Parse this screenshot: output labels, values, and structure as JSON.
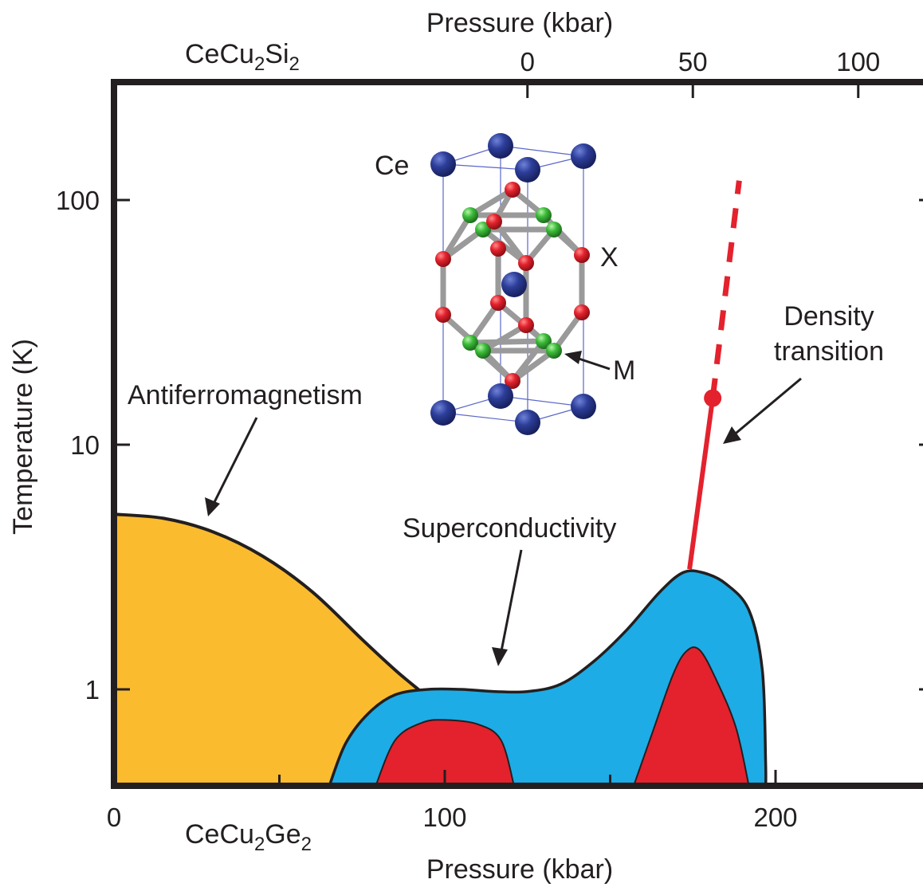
{
  "chart_data": {
    "type": "area",
    "title": "",
    "xlabel": "Pressure (kbar)",
    "x2label": "Pressure (kbar)",
    "ylabel": "Temperature (K)",
    "yscale": "log",
    "xlim": [
      0,
      245
    ],
    "ylim": [
      0.4,
      270
    ],
    "xticks": [
      0,
      100,
      200
    ],
    "xtick_labels": [
      "0",
      "100",
      "200"
    ],
    "yticks": [
      1,
      10,
      100
    ],
    "ytick_labels": [
      "1",
      "10",
      "100"
    ],
    "x2ticks": [
      {
        "bottom_x": 125,
        "label": "0"
      },
      {
        "bottom_x": 175,
        "label": "50"
      },
      {
        "bottom_x": 225,
        "label": "100"
      }
    ],
    "compound_labels": {
      "top": {
        "base": "CeCu",
        "sub1": "2",
        "mid": "Si",
        "sub2": "2"
      },
      "bottom": {
        "base": "CeCu",
        "sub1": "2",
        "mid": "Ge",
        "sub2": "2"
      }
    },
    "colors": {
      "antiferromagnetism": "#fbbb2e",
      "superconductivity": "#1dace5",
      "superconductivity_core": "#e3222d",
      "density_transition": "#e3222d",
      "frame": "#231f20",
      "crystal_Ce": "#2d3e99",
      "crystal_X": "#e3222d",
      "crystal_M": "#3dbb3a"
    },
    "regions": [
      {
        "name": "Antiferromagnetism",
        "points": [
          [
            0,
            5.2
          ],
          [
            15,
            5.0
          ],
          [
            30,
            4.4
          ],
          [
            45,
            3.5
          ],
          [
            60,
            2.5
          ],
          [
            75,
            1.6
          ],
          [
            85,
            1.2
          ],
          [
            92,
            1.0
          ],
          [
            95,
            0.93
          ],
          [
            85,
            0.65
          ],
          [
            75,
            0.48
          ],
          [
            65,
            0.4
          ],
          [
            0,
            0.4
          ]
        ]
      },
      {
        "name": "Superconductivity",
        "points": [
          [
            65,
            0.4
          ],
          [
            70,
            0.6
          ],
          [
            77,
            0.8
          ],
          [
            85,
            0.95
          ],
          [
            95,
            1.0
          ],
          [
            105,
            1.0
          ],
          [
            115,
            0.98
          ],
          [
            125,
            0.98
          ],
          [
            135,
            1.05
          ],
          [
            145,
            1.3
          ],
          [
            155,
            1.75
          ],
          [
            165,
            2.5
          ],
          [
            172,
            3.0
          ],
          [
            178,
            3.0
          ],
          [
            185,
            2.7
          ],
          [
            192,
            2.1
          ],
          [
            196,
            1.2
          ],
          [
            197,
            0.5
          ],
          [
            197,
            0.4
          ]
        ]
      },
      {
        "name": "superconductivity-core-1",
        "points": [
          [
            79,
            0.4
          ],
          [
            85,
            0.62
          ],
          [
            93,
            0.73
          ],
          [
            100,
            0.75
          ],
          [
            110,
            0.72
          ],
          [
            117,
            0.62
          ],
          [
            121,
            0.4
          ]
        ]
      },
      {
        "name": "superconductivity-core-2",
        "points": [
          [
            157,
            0.4
          ],
          [
            163,
            0.68
          ],
          [
            169,
            1.15
          ],
          [
            173,
            1.43
          ],
          [
            177,
            1.45
          ],
          [
            182,
            1.1
          ],
          [
            188,
            0.7
          ],
          [
            192,
            0.4
          ]
        ]
      }
    ],
    "density_transition": {
      "name": "Density transition",
      "solid": [
        [
          174,
          3.1
        ],
        [
          181,
          15.5
        ]
      ],
      "dashed": [
        [
          181,
          15.5
        ],
        [
          189,
          120
        ]
      ],
      "critical_point": [
        181,
        15.5
      ]
    },
    "annotations": [
      {
        "text": "Antiferromagnetism",
        "target": [
          28,
          5.2
        ]
      },
      {
        "text": "Superconductivity",
        "target": [
          115,
          1.0
        ]
      },
      {
        "text": "Density",
        "line2": "transition",
        "target": [
          184,
          10.5
        ]
      }
    ],
    "inset": {
      "type": "crystal-structure",
      "labels": [
        "Ce",
        "X",
        "M"
      ]
    }
  }
}
